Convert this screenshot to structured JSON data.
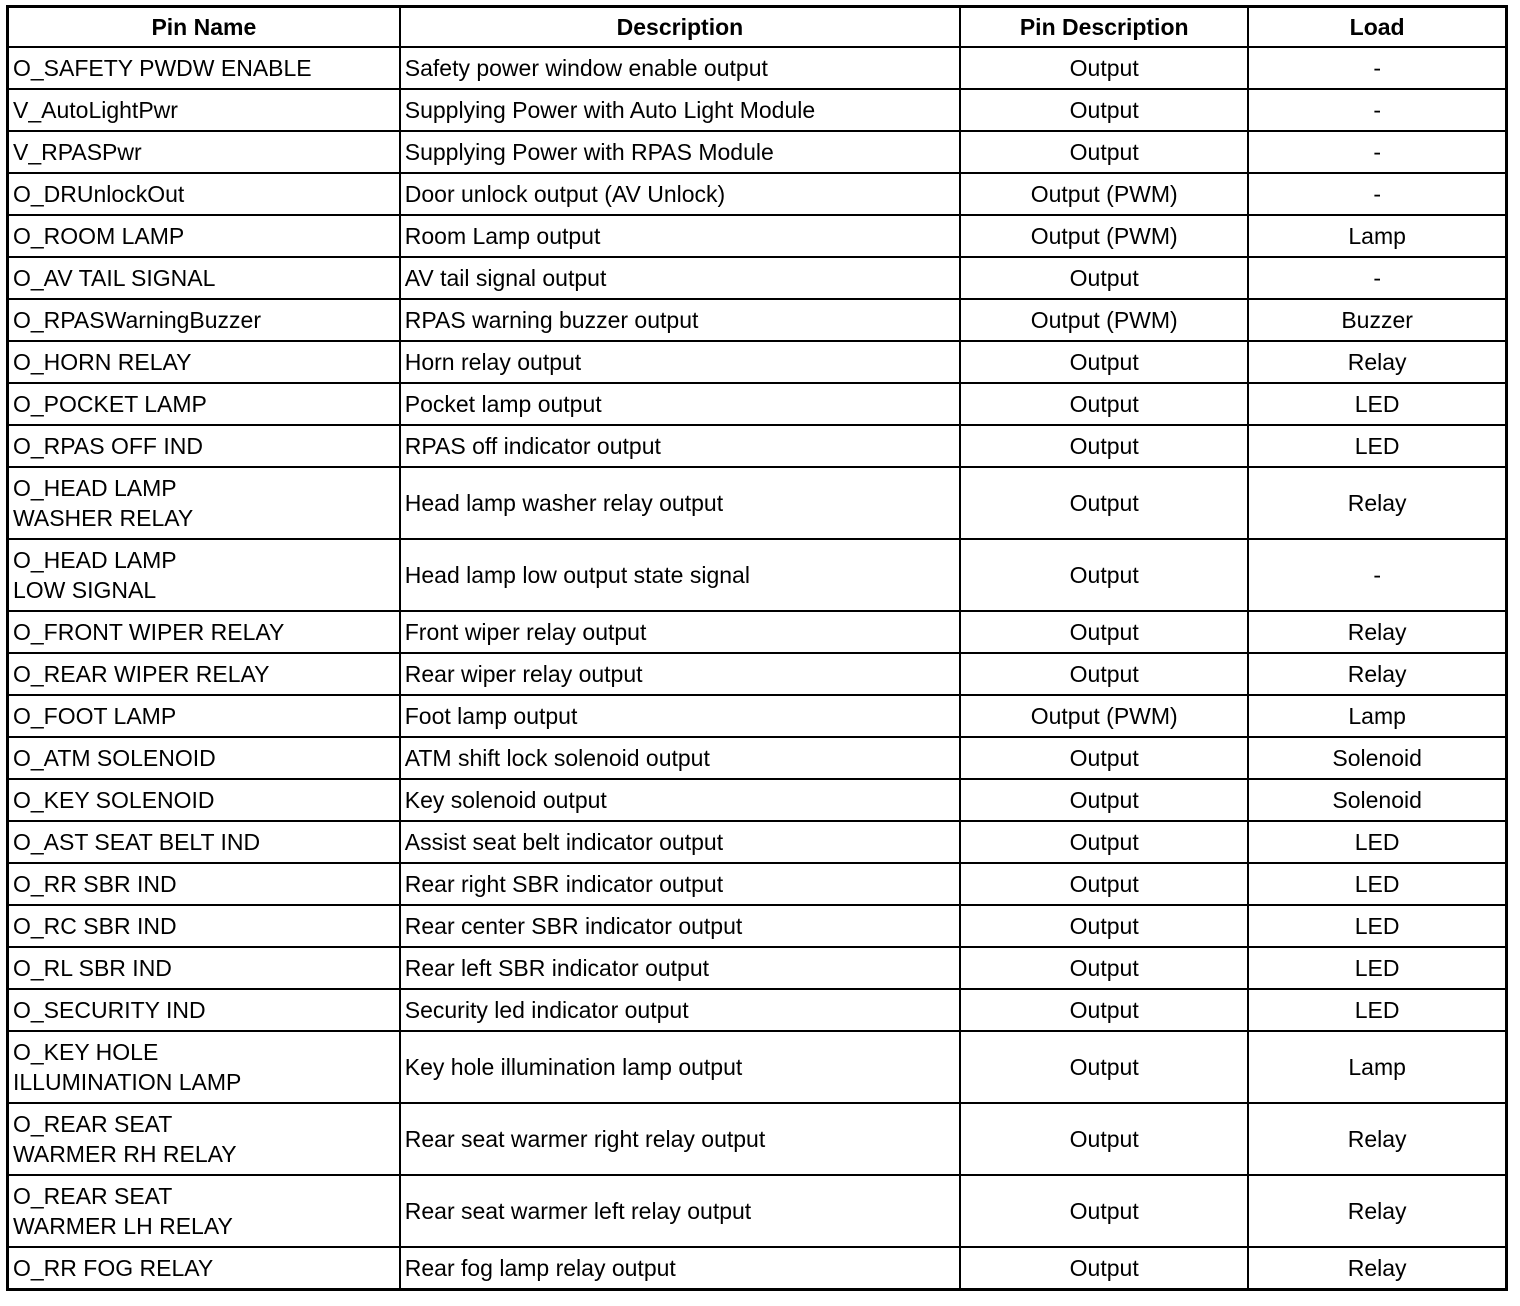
{
  "headers": [
    "Pin Name",
    "Description",
    "Pin Description",
    "Load"
  ],
  "rows": [
    {
      "pin": "O_SAFETY PWDW ENABLE",
      "desc": "Safety power window enable output",
      "pindesc": "Output",
      "load": "-"
    },
    {
      "pin": "V_AutoLightPwr",
      "desc": "Supplying Power with Auto Light Module",
      "pindesc": "Output",
      "load": "-"
    },
    {
      "pin": "V_RPASPwr",
      "desc": "Supplying Power with RPAS Module",
      "pindesc": "Output",
      "load": "-"
    },
    {
      "pin": "O_DRUnlockOut",
      "desc": "Door unlock output (AV Unlock)",
      "pindesc": "Output (PWM)",
      "load": "-"
    },
    {
      "pin": "O_ROOM LAMP",
      "desc": "Room Lamp output",
      "pindesc": "Output (PWM)",
      "load": "Lamp"
    },
    {
      "pin": "O_AV TAIL SIGNAL",
      "desc": "AV tail signal output",
      "pindesc": "Output",
      "load": "-"
    },
    {
      "pin": "O_RPASWarningBuzzer",
      "desc": "RPAS warning buzzer output",
      "pindesc": "Output (PWM)",
      "load": "Buzzer"
    },
    {
      "pin": "O_HORN RELAY",
      "desc": "Horn relay output",
      "pindesc": "Output",
      "load": "Relay"
    },
    {
      "pin": "O_POCKET LAMP",
      "desc": "Pocket lamp output",
      "pindesc": "Output",
      "load": "LED"
    },
    {
      "pin": "O_RPAS OFF IND",
      "desc": "RPAS off indicator output",
      "pindesc": "Output",
      "load": "LED"
    },
    {
      "pin": "O_HEAD LAMP\nWASHER RELAY",
      "desc": "Head lamp washer relay output",
      "pindesc": "Output",
      "load": "Relay"
    },
    {
      "pin": "O_HEAD LAMP\nLOW SIGNAL",
      "desc": "Head lamp low output state signal",
      "pindesc": "Output",
      "load": "-"
    },
    {
      "pin": "O_FRONT WIPER RELAY",
      "desc": "Front wiper relay output",
      "pindesc": "Output",
      "load": "Relay"
    },
    {
      "pin": "O_REAR WIPER RELAY",
      "desc": "Rear wiper relay output",
      "pindesc": "Output",
      "load": "Relay"
    },
    {
      "pin": "O_FOOT LAMP",
      "desc": "Foot lamp output",
      "pindesc": "Output (PWM)",
      "load": "Lamp"
    },
    {
      "pin": "O_ATM SOLENOID",
      "desc": "ATM shift lock solenoid output",
      "pindesc": "Output",
      "load": "Solenoid"
    },
    {
      "pin": "O_KEY SOLENOID",
      "desc": "Key solenoid output",
      "pindesc": "Output",
      "load": "Solenoid"
    },
    {
      "pin": "O_AST SEAT BELT IND",
      "desc": "Assist seat belt indicator output",
      "pindesc": "Output",
      "load": "LED"
    },
    {
      "pin": "O_RR SBR IND",
      "desc": "Rear right SBR indicator output",
      "pindesc": "Output",
      "load": "LED"
    },
    {
      "pin": "O_RC SBR IND",
      "desc": "Rear center SBR indicator output",
      "pindesc": "Output",
      "load": "LED"
    },
    {
      "pin": "O_RL SBR IND",
      "desc": "Rear left SBR indicator output",
      "pindesc": "Output",
      "load": "LED"
    },
    {
      "pin": "O_SECURITY IND",
      "desc": "Security led indicator output",
      "pindesc": "Output",
      "load": "LED"
    },
    {
      "pin": "O_KEY HOLE\nILLUMINATION LAMP",
      "desc": "Key hole illumination lamp output",
      "pindesc": "Output",
      "load": "Lamp"
    },
    {
      "pin": "O_REAR SEAT\nWARMER RH RELAY",
      "desc": "Rear seat warmer right relay output",
      "pindesc": "Output",
      "load": "Relay"
    },
    {
      "pin": "O_REAR SEAT\nWARMER LH RELAY",
      "desc": "Rear seat warmer left relay output",
      "pindesc": "Output",
      "load": "Relay"
    },
    {
      "pin": "O_RR FOG RELAY",
      "desc": "Rear fog lamp relay output",
      "pindesc": "Output",
      "load": "Relay"
    }
  ]
}
